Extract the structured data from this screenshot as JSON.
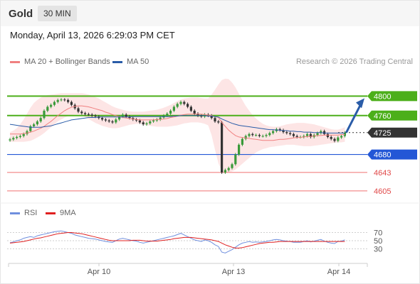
{
  "header": {
    "title": "Gold",
    "timeframe": "30 MIN"
  },
  "datetime": "Monday, April 13, 2026 6:29:03 PM CET",
  "legend": {
    "items": [
      {
        "label": "MA 20 + Bollinger Bands",
        "color": "#f08080"
      },
      {
        "label": "MA 50",
        "color": "#2a5ca8"
      }
    ],
    "credit": "Research © 2026 Trading Central"
  },
  "rsi_legend": {
    "items": [
      {
        "label": "RSI",
        "color": "#6f8fde"
      },
      {
        "label": "9MA",
        "color": "#e02020"
      }
    ]
  },
  "colors": {
    "green_level": "#4caf1a",
    "blue_level": "#2357d6",
    "red_level": "#f07070",
    "current": "#333333",
    "candle_up": "#3a9a3a",
    "candle_down": "#333333",
    "bollinger_fill": "#fde0e0",
    "arrow": "#2a5ca8"
  },
  "chart_data": [
    {
      "type": "candlestick",
      "ylim": [
        4583,
        4840
      ],
      "x_ticks": [
        "Apr 10",
        "Apr 13",
        "Apr 14"
      ],
      "levels": [
        {
          "value": 4800,
          "label": "4800",
          "kind": "resistance"
        },
        {
          "value": 4760,
          "label": "4760",
          "kind": "resistance"
        },
        {
          "value": 4725,
          "label": "4725",
          "kind": "current"
        },
        {
          "value": 4680,
          "label": "4680",
          "kind": "pivot"
        },
        {
          "value": 4643,
          "label": "4643",
          "kind": "support"
        },
        {
          "value": 4605,
          "label": "4605",
          "kind": "support"
        }
      ],
      "target_arrow": {
        "from": 4725,
        "to": 4800
      },
      "close": [
        4711,
        4714,
        4716,
        4718,
        4722,
        4728,
        4738,
        4742,
        4748,
        4755,
        4770,
        4778,
        4782,
        4788,
        4792,
        4793,
        4792,
        4788,
        4782,
        4775,
        4768,
        4765,
        4763,
        4762,
        4760,
        4758,
        4755,
        4752,
        4750,
        4748,
        4746,
        4752,
        4758,
        4762,
        4758,
        4755,
        4752,
        4750,
        4746,
        4742,
        4744,
        4748,
        4750,
        4752,
        4756,
        4760,
        4764,
        4770,
        4778,
        4784,
        4788,
        4784,
        4778,
        4770,
        4764,
        4760,
        4758,
        4762,
        4760,
        4755,
        4748,
        4746,
        4643,
        4648,
        4652,
        4660,
        4680,
        4700,
        4712,
        4718,
        4722,
        4720,
        4720,
        4718,
        4718,
        4720,
        4724,
        4728,
        4732,
        4730,
        4726,
        4724,
        4722,
        4718,
        4716,
        4716,
        4718,
        4722,
        4716,
        4720,
        4724,
        4728,
        4722,
        4716,
        4712,
        4708,
        4715,
        4718,
        4725
      ],
      "ma20": [
        4722,
        4722,
        4722,
        4722,
        4723,
        4724,
        4726,
        4728,
        4731,
        4734,
        4738,
        4743,
        4748,
        4754,
        4760,
        4765,
        4770,
        4774,
        4777,
        4779,
        4780,
        4780,
        4779,
        4778,
        4776,
        4774,
        4772,
        4770,
        4767,
        4765,
        4762,
        4760,
        4758,
        4756,
        4755,
        4754,
        4753,
        4752,
        4751,
        4751,
        4751,
        4751,
        4751,
        4752,
        4752,
        4753,
        4754,
        4756,
        4757,
        4759,
        4761,
        4762,
        4763,
        4763,
        4763,
        4763,
        4763,
        4762,
        4761,
        4760,
        4758,
        4756,
        4746,
        4738,
        4730,
        4724,
        4719,
        4716,
        4715,
        4714,
        4713,
        4712,
        4711,
        4710,
        4709,
        4709,
        4709,
        4709,
        4710,
        4711,
        4711,
        4712,
        4713,
        4714,
        4715,
        4715,
        4716,
        4717,
        4717,
        4718,
        4719,
        4719,
        4720,
        4720,
        4720,
        4720,
        4720,
        4721,
        4721
      ],
      "ma50": [
        4742,
        4741,
        4740,
        4739,
        4738,
        4737,
        4736,
        4736,
        4736,
        4736,
        4737,
        4738,
        4739,
        4741,
        4743,
        4745,
        4747,
        4749,
        4751,
        4752,
        4753,
        4754,
        4755,
        4756,
        4756,
        4756,
        4757,
        4757,
        4757,
        4757,
        4757,
        4757,
        4757,
        4757,
        4757,
        4757,
        4758,
        4758,
        4758,
        4758,
        4758,
        4758,
        4758,
        4758,
        4758,
        4758,
        4758,
        4758,
        4759,
        4759,
        4760,
        4760,
        4760,
        4760,
        4760,
        4760,
        4760,
        4760,
        4759,
        4759,
        4758,
        4757,
        4753,
        4750,
        4747,
        4744,
        4742,
        4740,
        4739,
        4738,
        4737,
        4736,
        4735,
        4734,
        4733,
        4732,
        4731,
        4731,
        4730,
        4730,
        4729,
        4729,
        4728,
        4728,
        4727,
        4727,
        4726,
        4726,
        4726,
        4725,
        4725,
        4725,
        4724,
        4724,
        4724,
        4724,
        4724,
        4724,
        4724
      ],
      "bb_upper": [
        4726,
        4729,
        4734,
        4742,
        4752,
        4764,
        4776,
        4786,
        4792,
        4797,
        4800,
        4802,
        4803,
        4804,
        4805,
        4806,
        4806,
        4806,
        4806,
        4806,
        4806,
        4806,
        4805,
        4803,
        4801,
        4798,
        4795,
        4791,
        4787,
        4783,
        4779,
        4776,
        4774,
        4772,
        4770,
        4769,
        4768,
        4768,
        4768,
        4768,
        4769,
        4770,
        4771,
        4772,
        4774,
        4776,
        4779,
        4782,
        4786,
        4790,
        4793,
        4795,
        4796,
        4797,
        4797,
        4797,
        4796,
        4795,
        4795,
        4803,
        4813,
        4824,
        4833,
        4836,
        4835,
        4828,
        4818,
        4805,
        4792,
        4780,
        4770,
        4761,
        4754,
        4748,
        4743,
        4740,
        4738,
        4737,
        4737,
        4738,
        4740,
        4742,
        4743,
        4744,
        4745,
        4745,
        4745,
        4744,
        4743,
        4742,
        4740,
        4738,
        4736,
        4734,
        4732,
        4731,
        4731,
        4733,
        4736
      ],
      "bb_lower": [
        4706,
        4706,
        4706,
        4706,
        4706,
        4707,
        4708,
        4711,
        4715,
        4719,
        4724,
        4730,
        4736,
        4742,
        4748,
        4752,
        4756,
        4759,
        4761,
        4762,
        4762,
        4760,
        4757,
        4753,
        4749,
        4745,
        4742,
        4739,
        4737,
        4735,
        4734,
        4734,
        4735,
        4737,
        4739,
        4741,
        4742,
        4743,
        4743,
        4742,
        4740,
        4739,
        4738,
        4737,
        4737,
        4737,
        4737,
        4738,
        4739,
        4740,
        4742,
        4744,
        4745,
        4746,
        4746,
        4746,
        4745,
        4743,
        4740,
        4720,
        4690,
        4662,
        4645,
        4642,
        4643,
        4645,
        4649,
        4655,
        4661,
        4667,
        4673,
        4679,
        4684,
        4688,
        4691,
        4693,
        4695,
        4696,
        4697,
        4698,
        4699,
        4700,
        4700,
        4700,
        4699,
        4698,
        4697,
        4697,
        4697,
        4698,
        4699,
        4700,
        4701,
        4702,
        4703,
        4704,
        4705,
        4705,
        4706
      ]
    },
    {
      "type": "line",
      "title": "RSI",
      "ylim": [
        10,
        90
      ],
      "y_ticks": [
        70,
        50,
        30
      ],
      "series": [
        {
          "name": "RSI",
          "values": [
            45,
            47,
            50,
            52,
            56,
            58,
            60,
            58,
            62,
            64,
            66,
            68,
            70,
            72,
            73,
            74,
            72,
            70,
            68,
            64,
            62,
            60,
            58,
            56,
            55,
            54,
            52,
            50,
            48,
            47,
            46,
            50,
            54,
            56,
            54,
            52,
            50,
            49,
            46,
            44,
            46,
            48,
            50,
            52,
            54,
            56,
            58,
            60,
            62,
            65,
            68,
            64,
            60,
            56,
            52,
            50,
            48,
            52,
            50,
            46,
            40,
            36,
            22,
            20,
            24,
            28,
            34,
            40,
            44,
            46,
            48,
            46,
            47,
            46,
            47,
            48,
            50,
            52,
            53,
            52,
            50,
            49,
            48,
            46,
            46,
            46,
            48,
            50,
            47,
            49,
            51,
            53,
            49,
            46,
            44,
            43,
            48,
            49,
            52
          ]
        },
        {
          "name": "9MA",
          "values": [
            44,
            45,
            46,
            47,
            48,
            50,
            52,
            54,
            56,
            57,
            59,
            61,
            63,
            65,
            67,
            68,
            69,
            70,
            70,
            69,
            68,
            67,
            65,
            63,
            61,
            59,
            57,
            55,
            53,
            51,
            50,
            50,
            50,
            50,
            50,
            50,
            51,
            51,
            51,
            50,
            49,
            49,
            49,
            49,
            50,
            51,
            52,
            53,
            55,
            56,
            57,
            58,
            58,
            58,
            57,
            56,
            55,
            54,
            53,
            52,
            50,
            48,
            44,
            40,
            37,
            34,
            32,
            32,
            33,
            35,
            37,
            39,
            41,
            43,
            44,
            45,
            46,
            46,
            47,
            48,
            48,
            48,
            48,
            48,
            48,
            48,
            48,
            48,
            48,
            48,
            48,
            48,
            48,
            48,
            48,
            48,
            48,
            48,
            48
          ]
        }
      ]
    }
  ]
}
